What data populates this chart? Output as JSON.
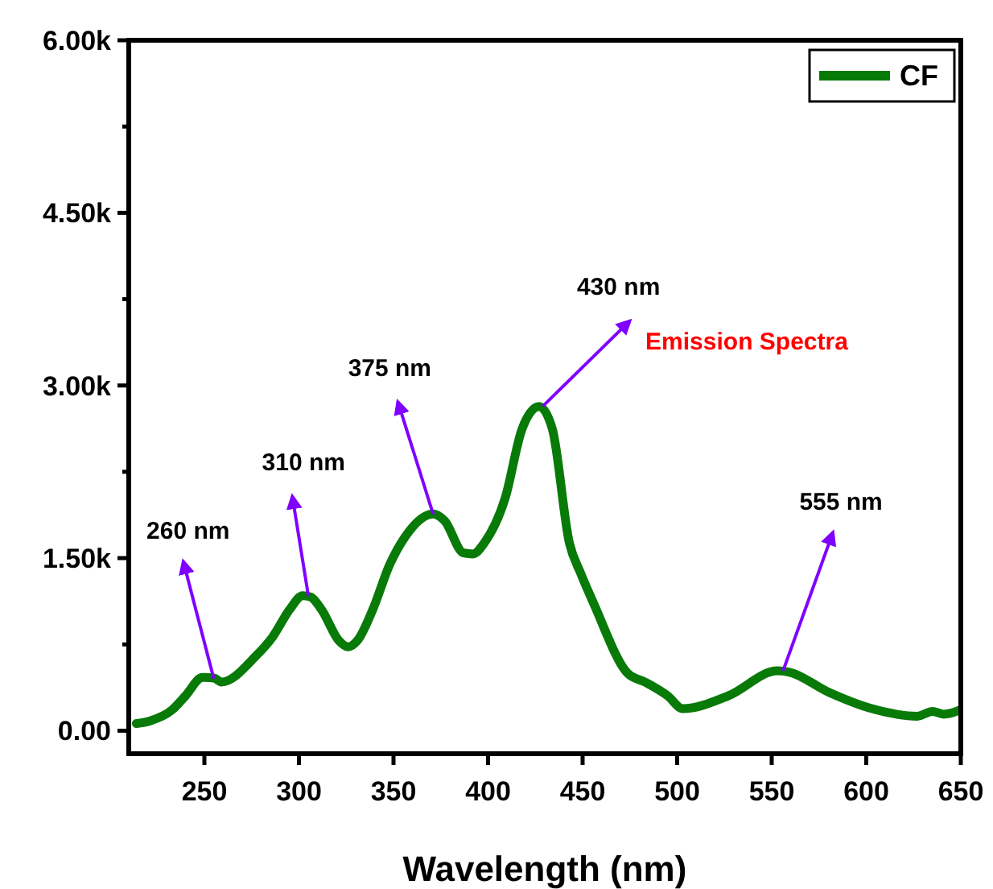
{
  "chart_data": {
    "type": "line",
    "xlabel": "Wavelength (nm)",
    "xlim": [
      210,
      650
    ],
    "xticks": [
      250,
      300,
      350,
      400,
      450,
      500,
      550,
      600,
      650
    ],
    "ylim": [
      -200,
      6000
    ],
    "yticks": [
      {
        "value": 0,
        "label": "0.00"
      },
      {
        "value": 750,
        "label": null
      },
      {
        "value": 1500,
        "label": "1.50k"
      },
      {
        "value": 2250,
        "label": null
      },
      {
        "value": 3000,
        "label": "3.00k"
      },
      {
        "value": 3750,
        "label": null
      },
      {
        "value": 4500,
        "label": "4.50k"
      },
      {
        "value": 5250,
        "label": null
      },
      {
        "value": 6000,
        "label": "6.00k"
      }
    ],
    "x": [
      214,
      221,
      233,
      240,
      249,
      255,
      259,
      277,
      286,
      295,
      302,
      306,
      312,
      321,
      326,
      331,
      339,
      348,
      356,
      371,
      377,
      387,
      392,
      398,
      409,
      418,
      427,
      434,
      443,
      449,
      456,
      474,
      483,
      495,
      503,
      527,
      553,
      559,
      580,
      603,
      627,
      635,
      641,
      650
    ],
    "series": [
      {
        "name": "CF",
        "color": "#087a08",
        "values": [
          62,
          84,
          182,
          303,
          463,
          458,
          423,
          645,
          813,
          1051,
          1173,
          1163,
          1051,
          785,
          729,
          785,
          1051,
          1444,
          1682,
          1884,
          1825,
          1545,
          1536,
          1632,
          2019,
          2623,
          2818,
          2622,
          1632,
          1367,
          1100,
          496,
          423,
          303,
          192,
          303,
          520,
          510,
          336,
          192,
          126,
          168,
          143,
          182
        ]
      }
    ],
    "legend": "top right",
    "grid": false,
    "annotations": [
      {
        "text": "260 nm",
        "x": 255,
        "y": 450
      },
      {
        "text": "310 nm",
        "x": 305,
        "y": 1170
      },
      {
        "text": "375 nm",
        "x": 371,
        "y": 1880
      },
      {
        "text": "430 nm",
        "x": 429,
        "y": 2820
      },
      {
        "text": "555 nm",
        "x": 556,
        "y": 520
      },
      "Emission Spectra"
    ]
  }
}
